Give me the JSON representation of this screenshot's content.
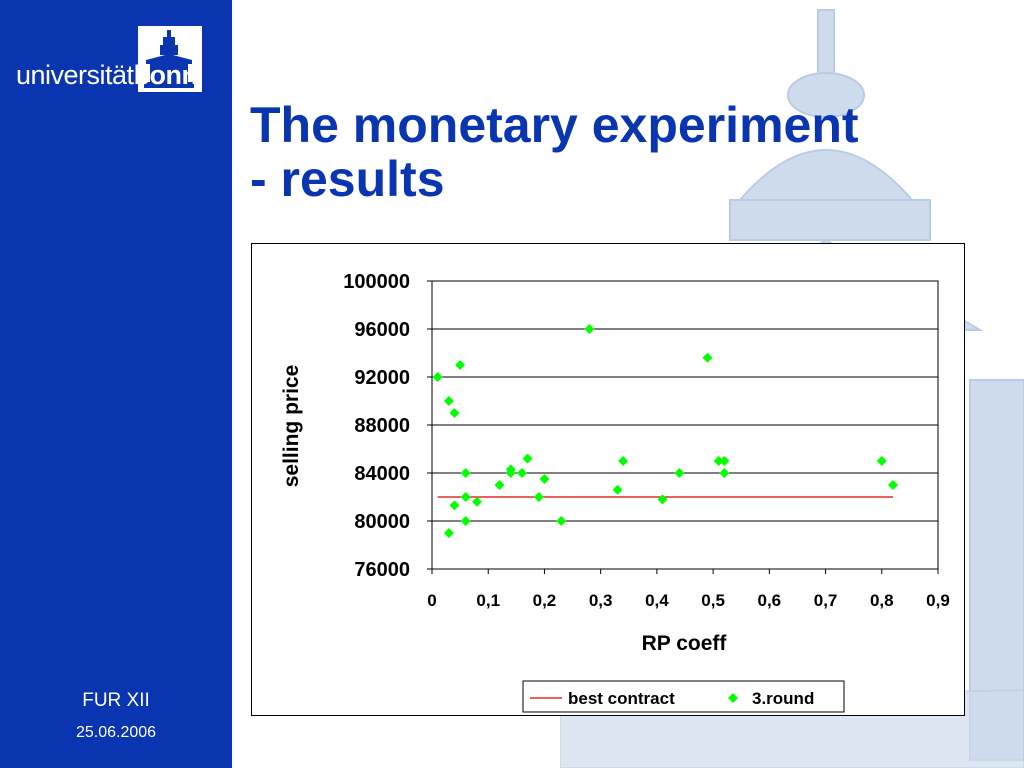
{
  "logo": {
    "text_light": "universität",
    "text_bold": "bonn"
  },
  "slide": {
    "title_line1": "The monetary experiment",
    "title_line2": "- results"
  },
  "footer": {
    "event": "FUR XII",
    "date": "25.06.2006"
  },
  "colors": {
    "sidebar": "#0a35b0",
    "title": "#0a35b0",
    "points": "#00ff00",
    "line": "#e00000"
  },
  "chart_data": {
    "type": "scatter",
    "xlabel": "RP coeff",
    "ylabel": "selling price",
    "xlim": [
      0,
      0.9
    ],
    "ylim": [
      76000,
      100000
    ],
    "x_ticks": [
      "0",
      "0,1",
      "0,2",
      "0,3",
      "0,4",
      "0,5",
      "0,6",
      "0,7",
      "0,8",
      "0,9"
    ],
    "y_ticks": [
      "76000",
      "80000",
      "84000",
      "88000",
      "92000",
      "96000",
      "100000"
    ],
    "grid": "horizontal",
    "legend_position": "bottom-right",
    "series": [
      {
        "name": "best contract",
        "type": "line",
        "x": [
          0.01,
          0.82
        ],
        "y": [
          82000,
          82000
        ]
      },
      {
        "name": "3.round",
        "type": "scatter",
        "x": [
          0.01,
          0.03,
          0.03,
          0.04,
          0.04,
          0.05,
          0.06,
          0.06,
          0.06,
          0.08,
          0.12,
          0.14,
          0.14,
          0.16,
          0.17,
          0.19,
          0.2,
          0.23,
          0.28,
          0.33,
          0.34,
          0.41,
          0.44,
          0.49,
          0.51,
          0.52,
          0.52,
          0.8,
          0.82
        ],
        "y": [
          92000,
          79000,
          90000,
          89000,
          81300,
          93000,
          84000,
          82000,
          80000,
          81600,
          83000,
          84300,
          84000,
          84000,
          85200,
          82000,
          83500,
          80000,
          96000,
          82600,
          85000,
          81800,
          84000,
          93600,
          85000,
          85000,
          84000,
          85000,
          83000
        ]
      }
    ]
  }
}
